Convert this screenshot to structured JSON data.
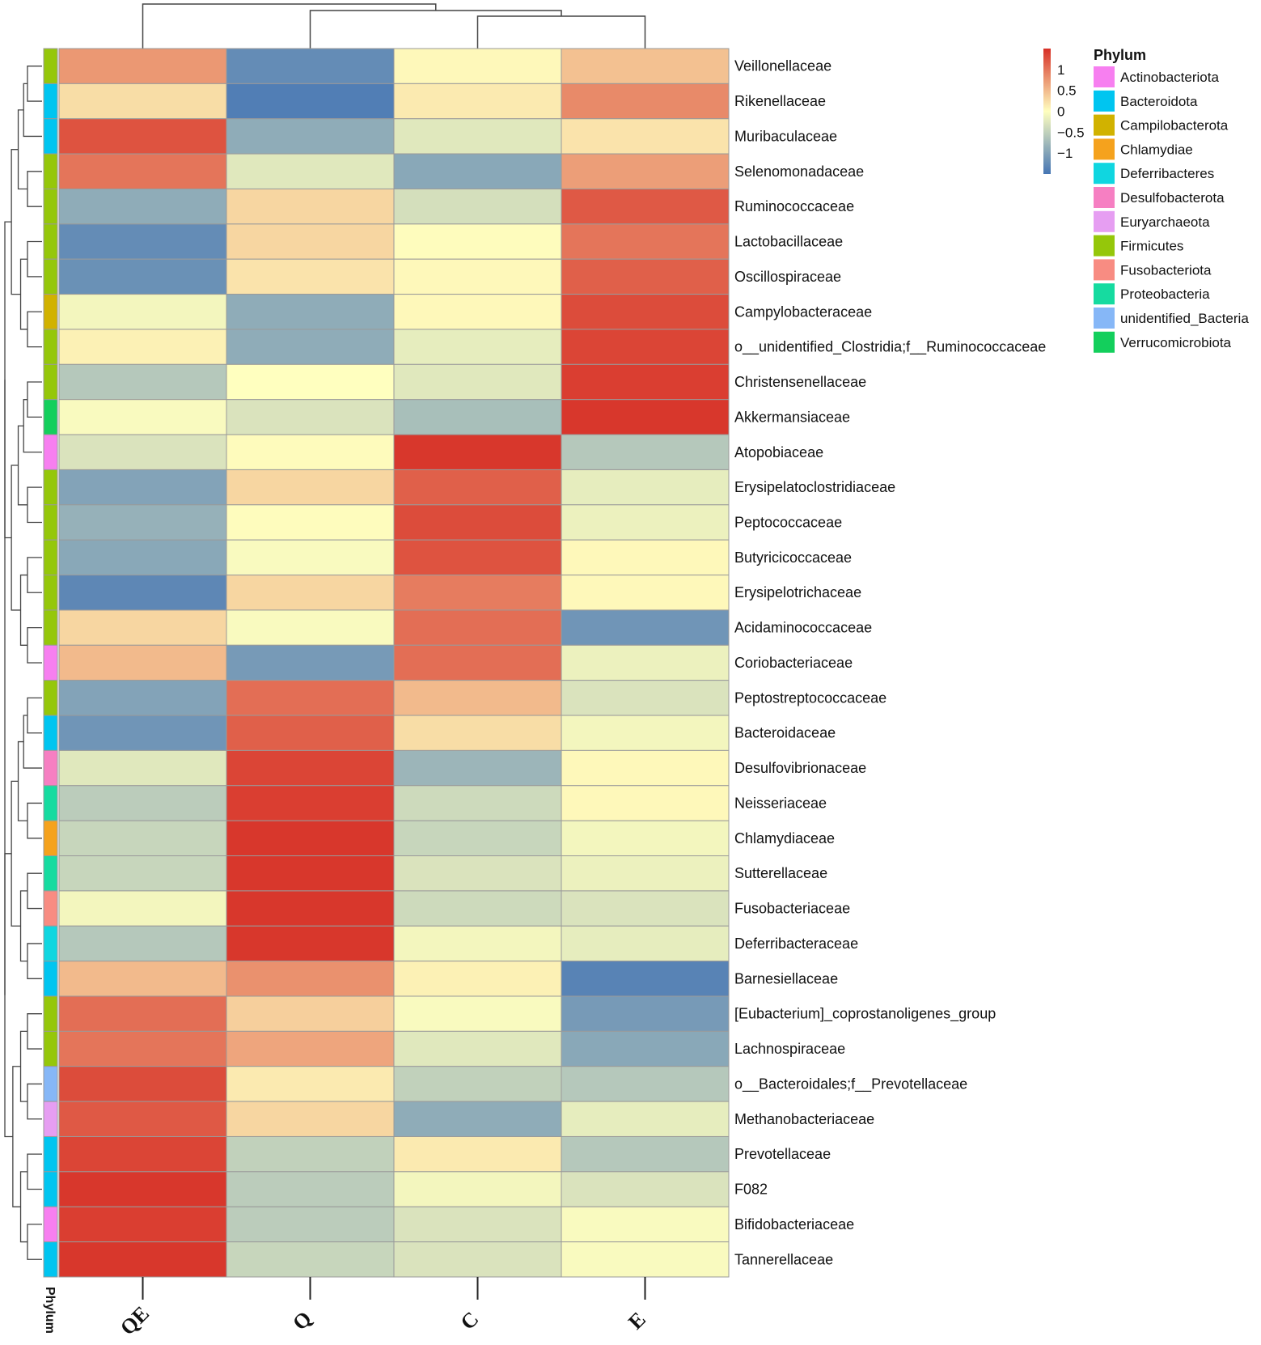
{
  "chart_data": {
    "type": "heatmap",
    "title": "",
    "columns": [
      "QE",
      "Q",
      "C",
      "E"
    ],
    "rows": [
      "Veillonellaceae",
      "Rikenellaceae",
      "Muribaculaceae",
      "Selenomonadaceae",
      "Ruminococcaceae",
      "Lactobacillaceae",
      "Oscillospiraceae",
      "Campylobacteraceae",
      "o__unidentified_Clostridia;f__Ruminococcaceae",
      "Christensenellaceae",
      "Akkermansiaceae",
      "Atopobiaceae",
      "Erysipelatoclostridiaceae",
      "Peptococcaceae",
      "Butyricicoccaceae",
      "Erysipelotrichaceae",
      "Acidaminococcaceae",
      "Coriobacteriaceae",
      "Peptostreptococcaceae",
      "Bacteroidaceae",
      "Desulfovibrionaceae",
      "Neisseriaceae",
      "Chlamydiaceae",
      "Sutterellaceae",
      "Fusobacteriaceae",
      "Deferribacteraceae",
      "Barnesiellaceae",
      "[Eubacterium]_coprostanoligenes_group",
      "Lachnospiraceae",
      "o__Bacteroidales;f__Prevotellaceae",
      "Methanobacteriaceae",
      "Prevotellaceae",
      "F082",
      "Bifidobacteriaceae",
      "Tannerellaceae"
    ],
    "values": [
      [
        0.75,
        -1.25,
        0.05,
        0.45
      ],
      [
        0.25,
        -1.4,
        0.15,
        0.85
      ],
      [
        1.25,
        -0.9,
        -0.25,
        0.2
      ],
      [
        1.0,
        -0.25,
        -0.95,
        0.7
      ],
      [
        -0.9,
        0.3,
        -0.35,
        1.2
      ],
      [
        -1.25,
        0.3,
        0.02,
        1.0
      ],
      [
        -1.2,
        0.2,
        0.05,
        1.15
      ],
      [
        -0.1,
        -0.9,
        0.05,
        1.3
      ],
      [
        0.1,
        -0.9,
        -0.2,
        1.35
      ],
      [
        -0.6,
        0.0,
        -0.25,
        1.4
      ],
      [
        -0.05,
        -0.3,
        -0.7,
        1.45
      ],
      [
        -0.3,
        0.03,
        1.45,
        -0.6
      ],
      [
        -1.0,
        0.3,
        1.15,
        -0.2
      ],
      [
        -0.85,
        0.02,
        1.3,
        -0.15
      ],
      [
        -0.95,
        -0.05,
        1.25,
        0.05
      ],
      [
        -1.3,
        0.3,
        0.95,
        0.05
      ],
      [
        0.3,
        -0.05,
        1.05,
        -1.15
      ],
      [
        0.5,
        -1.1,
        1.05,
        -0.15
      ],
      [
        -1.0,
        1.05,
        0.5,
        -0.3
      ],
      [
        -1.15,
        1.15,
        0.25,
        -0.1
      ],
      [
        -0.25,
        1.35,
        -0.8,
        0.05
      ],
      [
        -0.55,
        1.4,
        -0.4,
        0.05
      ],
      [
        -0.45,
        1.45,
        -0.45,
        -0.1
      ],
      [
        -0.45,
        1.45,
        -0.3,
        -0.15
      ],
      [
        -0.1,
        1.45,
        -0.4,
        -0.3
      ],
      [
        -0.6,
        1.45,
        -0.1,
        -0.2
      ],
      [
        0.5,
        0.8,
        0.1,
        -1.35
      ],
      [
        1.05,
        0.35,
        -0.05,
        -1.1
      ],
      [
        1.0,
        0.65,
        -0.25,
        -0.95
      ],
      [
        1.3,
        0.15,
        -0.5,
        -0.6
      ],
      [
        1.2,
        0.3,
        -0.9,
        -0.2
      ],
      [
        1.35,
        -0.5,
        0.15,
        -0.6
      ],
      [
        1.45,
        -0.55,
        -0.1,
        -0.3
      ],
      [
        1.4,
        -0.55,
        -0.3,
        -0.05
      ],
      [
        1.45,
        -0.45,
        -0.3,
        -0.05
      ]
    ],
    "row_phylum": [
      "Firmicutes",
      "Bacteroidota",
      "Bacteroidota",
      "Firmicutes",
      "Firmicutes",
      "Firmicutes",
      "Firmicutes",
      "Campilobacterota",
      "Firmicutes",
      "Firmicutes",
      "Verrucomicrobiota",
      "Actinobacteriota",
      "Firmicutes",
      "Firmicutes",
      "Firmicutes",
      "Firmicutes",
      "Firmicutes",
      "Actinobacteriota",
      "Firmicutes",
      "Bacteroidota",
      "Desulfobacterota",
      "Proteobacteria",
      "Chlamydiae",
      "Proteobacteria",
      "Fusobacteriota",
      "Deferribacteres",
      "Bacteroidota",
      "Firmicutes",
      "Firmicutes",
      "unidentified_Bacteria",
      "Euryarchaeota",
      "Bacteroidota",
      "Bacteroidota",
      "Actinobacteriota",
      "Bacteroidota"
    ],
    "color_scale": {
      "ticks": [
        1,
        0.5,
        0,
        -0.5,
        -1
      ],
      "tick_labels": [
        "1",
        "0.5",
        "0",
        "−0.5",
        "−1"
      ],
      "range": [
        -1.5,
        1.5
      ],
      "low": "#4575b4",
      "mid": "#ffffbf",
      "high": "#d73027"
    },
    "legend": {
      "title": "Phylum",
      "placement": "top-right",
      "entries": [
        {
          "name": "Actinobacteriota",
          "color": "#f77ff0"
        },
        {
          "name": "Bacteroidota",
          "color": "#00c5f0"
        },
        {
          "name": "Campilobacterota",
          "color": "#d1b200"
        },
        {
          "name": "Chlamydiae",
          "color": "#f5a21d"
        },
        {
          "name": "Deferribacteres",
          "color": "#10d6e0"
        },
        {
          "name": "Desulfobacterota",
          "color": "#f67fc2"
        },
        {
          "name": "Euryarchaeota",
          "color": "#e69ef2"
        },
        {
          "name": "Firmicutes",
          "color": "#95c70a"
        },
        {
          "name": "Fusobacteriota",
          "color": "#f88c82"
        },
        {
          "name": "Proteobacteria",
          "color": "#16dba0"
        },
        {
          "name": "unidentified_Bacteria",
          "color": "#86b7f7"
        },
        {
          "name": "Verrucomicrobiota",
          "color": "#13cf5c"
        }
      ]
    },
    "annotation_axis_label": "Phylum"
  }
}
